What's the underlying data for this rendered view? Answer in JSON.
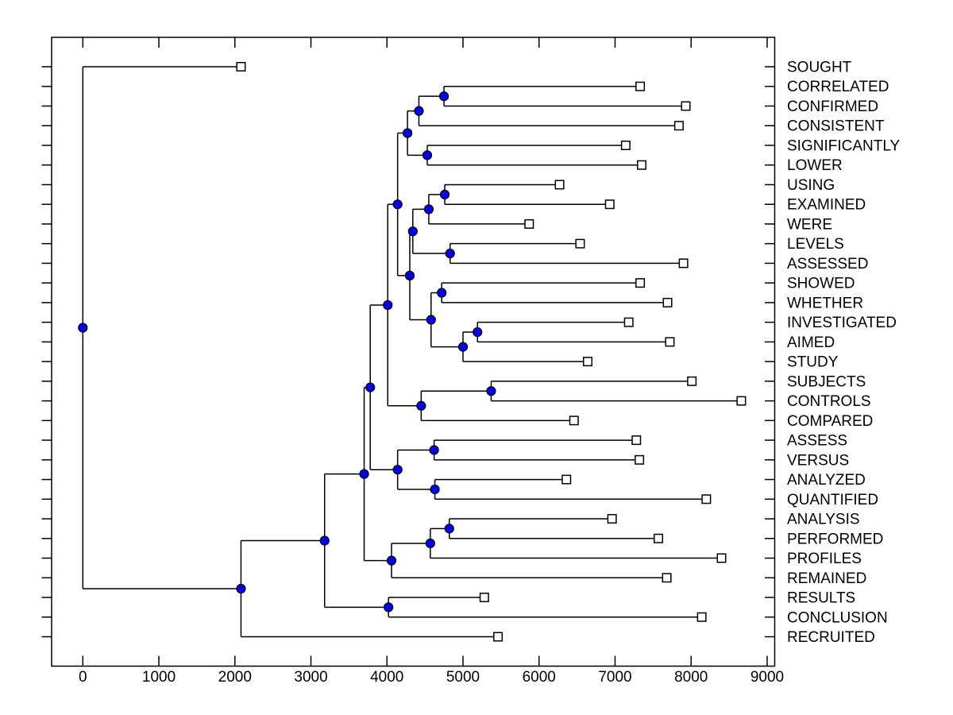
{
  "figure": {
    "background": "#ffffff",
    "title": ""
  },
  "chart_data": {
    "type": "dendrogram",
    "subtype": "phylogenetic-tree",
    "orientation": "left-to-right",
    "n_leaves": 30,
    "grid": false,
    "legend": null,
    "x_axis": {
      "ticks": [
        0,
        1000,
        2000,
        3000,
        4000,
        5000,
        6000,
        7000,
        8000,
        9000
      ],
      "tick_labels": [
        "0",
        "1000",
        "2000",
        "3000",
        "4000",
        "5000",
        "6000",
        "7000",
        "8000",
        "9000"
      ],
      "xlim": [
        -410,
        9095
      ]
    },
    "styles": {
      "branch_color": "#000000",
      "node_marker": "filled-circle",
      "node_fill": "#0000ee",
      "node_stroke": "#000000",
      "leaf_marker": "open-square",
      "leaf_fill": "#ffffff",
      "leaf_stroke": "#000000"
    },
    "leaves": [
      {
        "name": "SOUGHT",
        "x": 2080
      },
      {
        "name": "CORRELATED",
        "x": 7330
      },
      {
        "name": "CONFIRMED",
        "x": 7930
      },
      {
        "name": "CONSISTENT",
        "x": 7840
      },
      {
        "name": "SIGNIFICANTLY",
        "x": 7140
      },
      {
        "name": "LOWER",
        "x": 7350
      },
      {
        "name": "USING",
        "x": 6270
      },
      {
        "name": "EXAMINED",
        "x": 6930
      },
      {
        "name": "WERE",
        "x": 5870
      },
      {
        "name": "LEVELS",
        "x": 6540
      },
      {
        "name": "ASSESSED",
        "x": 7900
      },
      {
        "name": "SHOWED",
        "x": 7330
      },
      {
        "name": "WHETHER",
        "x": 7690
      },
      {
        "name": "INVESTIGATED",
        "x": 7180
      },
      {
        "name": "AIMED",
        "x": 7720
      },
      {
        "name": "STUDY",
        "x": 6640
      },
      {
        "name": "SUBJECTS",
        "x": 8010
      },
      {
        "name": "CONTROLS",
        "x": 8660
      },
      {
        "name": "COMPARED",
        "x": 6460
      },
      {
        "name": "ASSESS",
        "x": 7280
      },
      {
        "name": "VERSUS",
        "x": 7320
      },
      {
        "name": "ANALYZED",
        "x": 6360
      },
      {
        "name": "QUANTIFIED",
        "x": 8200
      },
      {
        "name": "ANALYSIS",
        "x": 6960
      },
      {
        "name": "PERFORMED",
        "x": 7570
      },
      {
        "name": "PROFILES",
        "x": 8400
      },
      {
        "name": "REMAINED",
        "x": 7680
      },
      {
        "name": "RESULTS",
        "x": 5280
      },
      {
        "name": "CONCLUSION",
        "x": 8140
      },
      {
        "name": "RECRUITED",
        "x": 5460
      }
    ],
    "internal_nodes": [
      {
        "id": "N0",
        "x": 4750,
        "children": [
          "L1",
          "L2"
        ]
      },
      {
        "id": "N1",
        "x": 4420,
        "children": [
          "N0",
          "L3"
        ]
      },
      {
        "id": "N2",
        "x": 4530,
        "children": [
          "L4",
          "L5"
        ]
      },
      {
        "id": "N3",
        "x": 4270,
        "children": [
          "N1",
          "N2"
        ]
      },
      {
        "id": "N4",
        "x": 4760,
        "children": [
          "L6",
          "L7"
        ]
      },
      {
        "id": "N5",
        "x": 4550,
        "children": [
          "N4",
          "L8"
        ]
      },
      {
        "id": "N6",
        "x": 4830,
        "children": [
          "L9",
          "L10"
        ]
      },
      {
        "id": "N7",
        "x": 4340,
        "children": [
          "N5",
          "N6"
        ]
      },
      {
        "id": "N8",
        "x": 4720,
        "children": [
          "L11",
          "L12"
        ]
      },
      {
        "id": "N9",
        "x": 5190,
        "children": [
          "L13",
          "L14"
        ]
      },
      {
        "id": "N10",
        "x": 5000,
        "children": [
          "N9",
          "L15"
        ]
      },
      {
        "id": "N11",
        "x": 4580,
        "children": [
          "N8",
          "N10"
        ]
      },
      {
        "id": "N12",
        "x": 4300,
        "children": [
          "N7",
          "N11"
        ]
      },
      {
        "id": "N13",
        "x": 4140,
        "children": [
          "N3",
          "N12"
        ]
      },
      {
        "id": "N14",
        "x": 5370,
        "children": [
          "L16",
          "L17"
        ]
      },
      {
        "id": "N15",
        "x": 4450,
        "children": [
          "N14",
          "L18"
        ]
      },
      {
        "id": "N16",
        "x": 4010,
        "children": [
          "N13",
          "N15"
        ]
      },
      {
        "id": "N17",
        "x": 4620,
        "children": [
          "L19",
          "L20"
        ]
      },
      {
        "id": "N18",
        "x": 4630,
        "children": [
          "L21",
          "L22"
        ]
      },
      {
        "id": "N19",
        "x": 4140,
        "children": [
          "N17",
          "N18"
        ]
      },
      {
        "id": "N20",
        "x": 3780,
        "children": [
          "N16",
          "N19"
        ]
      },
      {
        "id": "N21",
        "x": 4820,
        "children": [
          "L23",
          "L24"
        ]
      },
      {
        "id": "N22",
        "x": 4570,
        "children": [
          "N21",
          "L25"
        ]
      },
      {
        "id": "N23",
        "x": 4060,
        "children": [
          "N22",
          "L26"
        ]
      },
      {
        "id": "N24",
        "x": 3700,
        "children": [
          "N20",
          "N23"
        ]
      },
      {
        "id": "N25",
        "x": 4020,
        "children": [
          "L27",
          "L28"
        ]
      },
      {
        "id": "N26",
        "x": 3180,
        "children": [
          "N24",
          "N25"
        ]
      },
      {
        "id": "N27",
        "x": 2080,
        "children": [
          "N26",
          "L29"
        ]
      },
      {
        "id": "N28",
        "x": 0,
        "children": [
          "L0",
          "N27"
        ]
      }
    ]
  }
}
